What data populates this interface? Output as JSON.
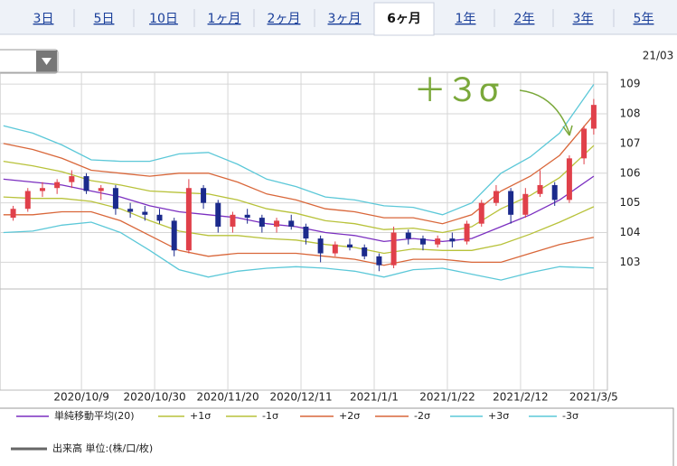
{
  "tabs": [
    "3日",
    "5日",
    "10日",
    "1ヶ月",
    "2ヶ月",
    "3ヶ月",
    "6ヶ月",
    "1年",
    "2年",
    "3年",
    "5年"
  ],
  "selected_tab": 6,
  "corner_label": "21/03",
  "chart_data": {
    "type": "candlestick",
    "annotation": "＋３σ",
    "annotation_color": "#7aa83a",
    "up_color": "#e0404a",
    "down_color": "#1b2a8c",
    "grid": true,
    "xlim": [
      -16.7,
      107.8
    ],
    "ylim": [
      102.1,
      109.4
    ],
    "xticks": [
      {
        "value": 0,
        "label": "2020/10/9"
      },
      {
        "value": 15,
        "label": "2020/10/30"
      },
      {
        "value": 30,
        "label": "2020/11/20"
      },
      {
        "value": 45,
        "label": "2020/12/11"
      },
      {
        "value": 60,
        "label": "2021/1/1"
      },
      {
        "value": 75,
        "label": "2021/1/22"
      },
      {
        "value": 90,
        "label": "2021/2/12"
      },
      {
        "value": 105,
        "label": "2021/3/5"
      }
    ],
    "yticks": [
      103,
      104,
      105,
      106,
      107,
      108,
      109
    ],
    "x": [
      -14,
      -11,
      -8,
      -5,
      -2,
      1,
      4,
      7,
      10,
      13,
      16,
      19,
      22,
      25,
      28,
      31,
      34,
      37,
      40,
      43,
      46,
      49,
      52,
      55,
      58,
      61,
      64,
      67,
      70,
      73,
      76,
      79,
      82,
      85,
      88,
      91,
      94,
      97,
      100,
      103,
      105
    ],
    "open": [
      104.5,
      104.8,
      105.4,
      105.5,
      105.7,
      105.9,
      105.4,
      105.5,
      104.8,
      104.7,
      104.6,
      104.4,
      103.4,
      105.5,
      105.0,
      104.2,
      104.6,
      104.5,
      104.2,
      104.4,
      104.2,
      103.8,
      103.3,
      103.6,
      103.5,
      103.2,
      102.9,
      104.0,
      103.8,
      103.6,
      103.8,
      103.7,
      104.3,
      105.0,
      105.4,
      104.6,
      105.3,
      105.6,
      105.1,
      106.5,
      107.5
    ],
    "high": [
      104.9,
      105.5,
      105.7,
      105.8,
      106.1,
      106.0,
      105.6,
      105.6,
      105.0,
      104.9,
      104.8,
      104.5,
      105.8,
      105.6,
      105.1,
      104.7,
      104.8,
      104.6,
      104.5,
      104.6,
      104.3,
      103.9,
      103.7,
      103.8,
      103.6,
      103.3,
      104.2,
      104.1,
      103.9,
      103.9,
      104.0,
      104.4,
      105.1,
      105.6,
      105.5,
      105.5,
      106.1,
      105.7,
      106.6,
      107.6,
      108.5
    ],
    "low": [
      104.4,
      104.7,
      105.2,
      105.3,
      105.5,
      105.3,
      105.1,
      104.6,
      104.5,
      104.4,
      104.3,
      103.2,
      103.3,
      104.8,
      104.0,
      104.0,
      104.3,
      104.0,
      104.0,
      104.1,
      103.6,
      103.0,
      103.2,
      103.4,
      103.1,
      102.7,
      102.8,
      103.6,
      103.4,
      103.5,
      103.5,
      103.6,
      104.2,
      104.9,
      104.3,
      104.5,
      105.2,
      104.9,
      105.0,
      106.3,
      107.3
    ],
    "close": [
      104.8,
      105.4,
      105.5,
      105.7,
      105.9,
      105.4,
      105.5,
      104.8,
      104.7,
      104.6,
      104.4,
      103.4,
      105.5,
      105.0,
      104.2,
      104.6,
      104.5,
      104.2,
      104.4,
      104.2,
      103.8,
      103.3,
      103.6,
      103.5,
      103.2,
      102.9,
      104.0,
      103.8,
      103.6,
      103.8,
      103.7,
      104.3,
      105.0,
      105.4,
      104.6,
      105.3,
      105.6,
      105.1,
      106.5,
      107.5,
      108.3
    ],
    "line_x": [
      -16,
      -10,
      -4,
      2,
      8,
      14,
      20,
      26,
      32,
      38,
      44,
      50,
      56,
      62,
      68,
      74,
      80,
      86,
      92,
      98,
      105
    ],
    "lines": [
      {
        "name": "単純移動平均(20)",
        "color": "#7b2fc0",
        "values": [
          105.8,
          105.7,
          105.6,
          105.4,
          105.2,
          104.9,
          104.7,
          104.6,
          104.5,
          104.3,
          104.2,
          104.0,
          103.9,
          103.7,
          103.8,
          103.7,
          103.8,
          104.2,
          104.6,
          105.1,
          105.9
        ]
      },
      {
        "name": "+1σ",
        "color": "#b8c23a",
        "values": [
          106.4,
          106.25,
          106.05,
          105.75,
          105.6,
          105.4,
          105.35,
          105.3,
          105.1,
          104.8,
          104.65,
          104.4,
          104.3,
          104.1,
          104.15,
          104.0,
          104.2,
          104.8,
          105.25,
          105.85,
          106.93
        ]
      },
      {
        "name": "-1σ",
        "color": "#b8c23a",
        "values": [
          105.2,
          105.15,
          105.15,
          105.05,
          104.8,
          104.4,
          104.05,
          103.9,
          103.9,
          103.8,
          103.75,
          103.6,
          103.5,
          103.3,
          103.45,
          103.4,
          103.4,
          103.6,
          103.95,
          104.35,
          104.87
        ]
      },
      {
        "name": "+2σ",
        "color": "#d9673a",
        "values": [
          107.0,
          106.8,
          106.5,
          106.1,
          106.0,
          105.9,
          106.0,
          106.0,
          105.7,
          105.3,
          105.1,
          104.8,
          104.7,
          104.5,
          104.5,
          104.3,
          104.6,
          105.4,
          105.9,
          106.6,
          107.96
        ]
      },
      {
        "name": "-2σ",
        "color": "#d9673a",
        "values": [
          104.6,
          104.6,
          104.7,
          104.7,
          104.4,
          103.9,
          103.4,
          103.2,
          103.3,
          103.3,
          103.3,
          103.2,
          103.1,
          102.9,
          103.1,
          103.1,
          103.0,
          103.0,
          103.3,
          103.6,
          103.84
        ]
      },
      {
        "name": "+3σ",
        "color": "#5cc8d8",
        "values": [
          107.6,
          107.35,
          106.95,
          106.45,
          106.4,
          106.4,
          106.65,
          106.7,
          106.3,
          105.8,
          105.55,
          105.2,
          105.1,
          104.9,
          104.85,
          104.6,
          105.0,
          106.0,
          106.55,
          107.35,
          108.99
        ]
      },
      {
        "name": "-3σ",
        "color": "#5cc8d8",
        "values": [
          104.0,
          104.05,
          104.25,
          104.35,
          104.0,
          103.4,
          102.75,
          102.5,
          102.7,
          102.8,
          102.85,
          102.8,
          102.7,
          102.5,
          102.75,
          102.8,
          102.6,
          102.4,
          102.65,
          102.85,
          102.81
        ]
      }
    ],
    "volume_legend": "出来高 単位:(株/口/枚)",
    "volume_color": "#666666"
  }
}
